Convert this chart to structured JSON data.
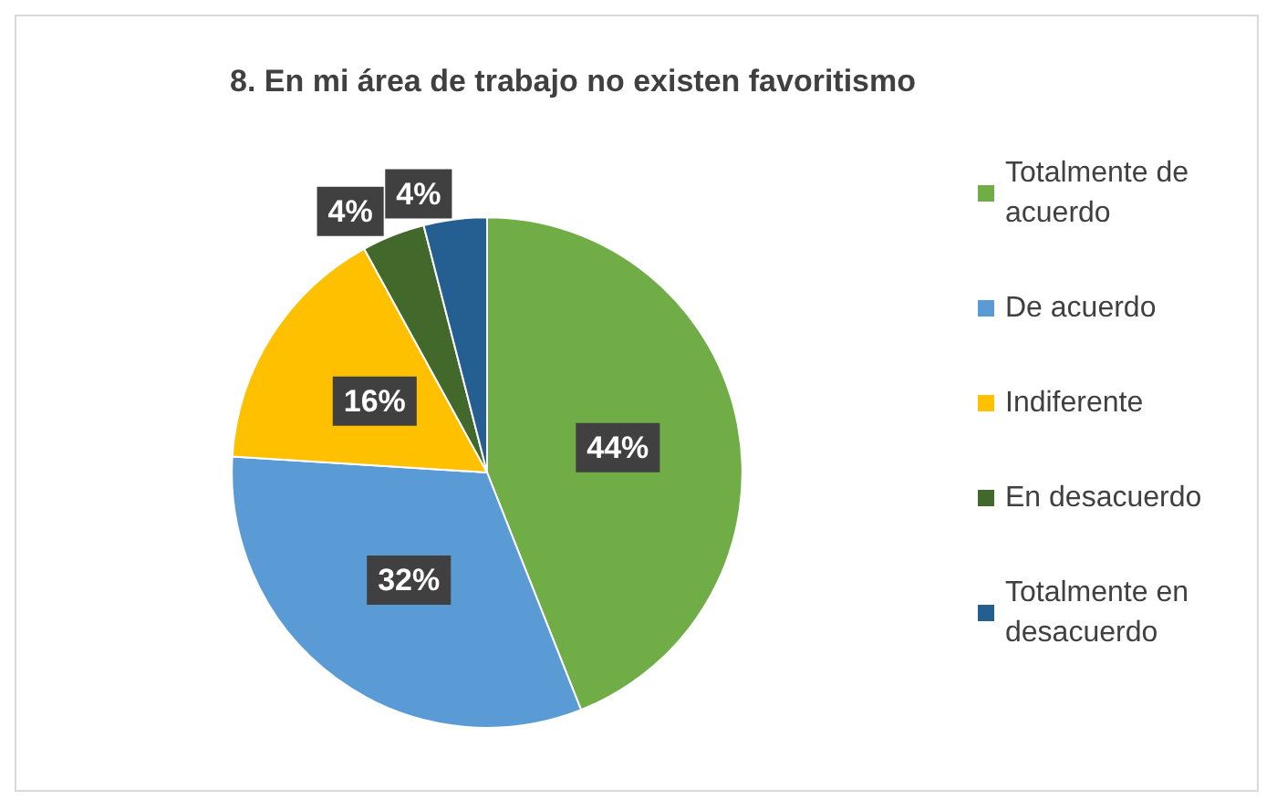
{
  "chart_data": {
    "type": "pie",
    "title": "8. En mi área de trabajo no existen favoritismo",
    "categories": [
      "Totalmente de acuerdo",
      "De acuerdo",
      "Indiferente",
      "En desacuerdo",
      "Totalmente en desacuerdo"
    ],
    "values": [
      44,
      32,
      16,
      4,
      4
    ],
    "value_labels": [
      "44%",
      "32%",
      "16%",
      "4%",
      "4%"
    ],
    "colors": [
      "#70ad47",
      "#5b9bd5",
      "#ffc000",
      "#43682b",
      "#255e91"
    ],
    "legend": "right"
  }
}
